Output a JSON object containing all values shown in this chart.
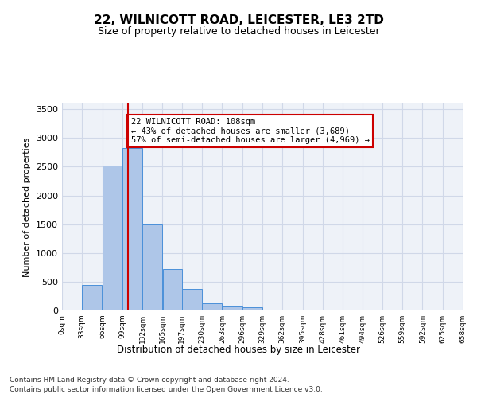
{
  "title1": "22, WILNICOTT ROAD, LEICESTER, LE3 2TD",
  "title2": "Size of property relative to detached houses in Leicester",
  "xlabel": "Distribution of detached houses by size in Leicester",
  "ylabel": "Number of detached properties",
  "bin_edges": [
    0,
    33,
    66,
    99,
    132,
    165,
    197,
    230,
    263,
    296,
    329,
    362,
    395,
    428,
    461,
    494,
    526,
    559,
    592,
    625,
    658
  ],
  "bar_heights": [
    20,
    450,
    2520,
    2820,
    1490,
    720,
    380,
    130,
    65,
    50,
    0,
    0,
    0,
    0,
    0,
    0,
    0,
    0,
    0,
    0
  ],
  "bar_color": "#aec6e8",
  "bar_edge_color": "#4a90d9",
  "property_size": 108,
  "annotation_text": "22 WILNICOTT ROAD: 108sqm\n← 43% of detached houses are smaller (3,689)\n57% of semi-detached houses are larger (4,969) →",
  "annotation_box_color": "#ffffff",
  "annotation_box_edge": "#cc0000",
  "vline_color": "#cc0000",
  "grid_color": "#d0d8e8",
  "background_color": "#eef2f8",
  "plot_bg_color": "#eef2f8",
  "ylim": [
    0,
    3600
  ],
  "yticks": [
    0,
    500,
    1000,
    1500,
    2000,
    2500,
    3000,
    3500
  ],
  "footer1": "Contains HM Land Registry data © Crown copyright and database right 2024.",
  "footer2": "Contains public sector information licensed under the Open Government Licence v3.0."
}
